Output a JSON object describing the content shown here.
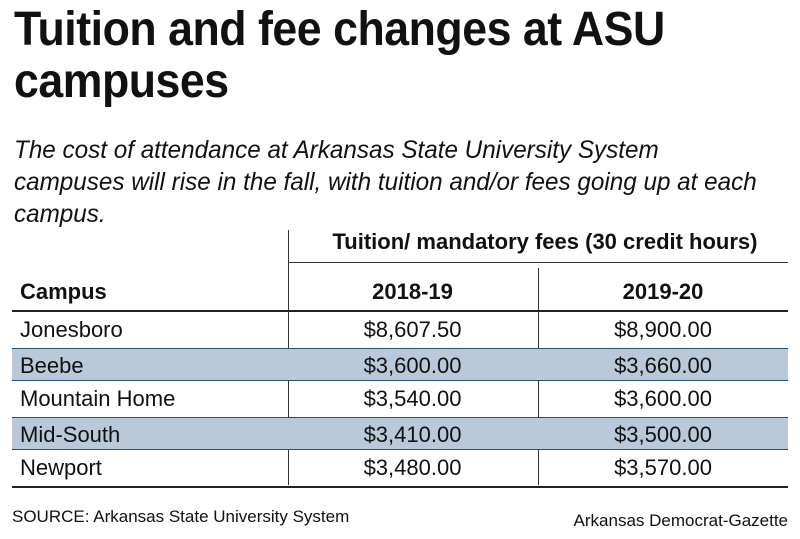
{
  "title": "Tuition and fee changes at ASU campuses",
  "subtitle": "The cost of attendance at Arkansas State University System campuses will rise in the fall, with tuition and/or fees going up at each campus.",
  "source": "SOURCE: Arkansas State University System",
  "credit": "Arkansas Democrat-Gazette",
  "chart_data": {
    "type": "table",
    "title": "Tuition and fee changes at ASU campuses",
    "group_header": "Tuition/ mandatory fees (30 credit hours)",
    "columns": [
      "Campus",
      "2018-19",
      "2019-20"
    ],
    "rows": [
      {
        "campus": "Jonesboro",
        "y2018_19": "$8,607.50",
        "y2019_20": "$8,900.00",
        "shaded": false
      },
      {
        "campus": "Beebe",
        "y2018_19": "$3,600.00",
        "y2019_20": "$3,660.00",
        "shaded": true
      },
      {
        "campus": "Mountain Home",
        "y2018_19": "$3,540.00",
        "y2019_20": "$3,600.00",
        "shaded": false
      },
      {
        "campus": "Mid-South",
        "y2018_19": "$3,410.00",
        "y2019_20": "$3,500.00",
        "shaded": true
      },
      {
        "campus": "Newport",
        "y2018_19": "$3,480.00",
        "y2019_20": "$3,570.00",
        "shaded": false
      }
    ],
    "colors": {
      "shade": "#b9c9d9",
      "shade_border": "#2b4f74",
      "text": "#111111"
    }
  }
}
